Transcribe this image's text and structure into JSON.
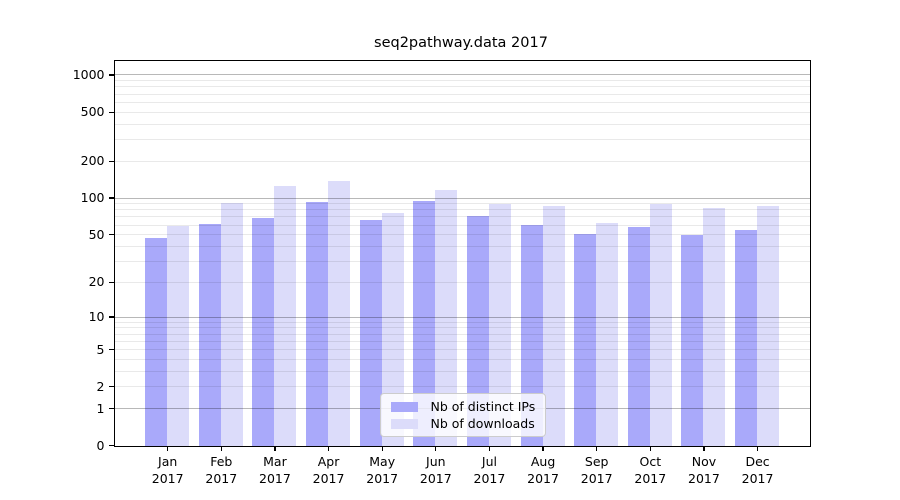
{
  "chart_data": {
    "type": "bar",
    "title": "seq2pathway.data 2017",
    "categories": [
      "Jan",
      "Feb",
      "Mar",
      "Apr",
      "May",
      "Jun",
      "Jul",
      "Aug",
      "Sep",
      "Oct",
      "Nov",
      "Dec"
    ],
    "x_year_label": "2017",
    "series": [
      {
        "name": "Nb of distinct IPs",
        "slug": "ips",
        "color": "#a9a9fa",
        "values": [
          47,
          61,
          68,
          93,
          66,
          95,
          71,
          60,
          51,
          58,
          50,
          55
        ]
      },
      {
        "name": "Nb of downloads",
        "slug": "downloads",
        "color": "#dcdcfa",
        "values": [
          59,
          91,
          125,
          137,
          75,
          116,
          90,
          86,
          63,
          90,
          83,
          86
        ]
      }
    ],
    "y_scale": "log1p",
    "y_ticks": [
      0,
      1,
      2,
      5,
      10,
      20,
      50,
      100,
      200,
      500,
      1000
    ],
    "ylim": [
      0,
      1310
    ],
    "grid": "both",
    "legend": {
      "position": "bottom-center",
      "entries": [
        "Nb of distinct IPs",
        "Nb of downloads"
      ]
    }
  }
}
